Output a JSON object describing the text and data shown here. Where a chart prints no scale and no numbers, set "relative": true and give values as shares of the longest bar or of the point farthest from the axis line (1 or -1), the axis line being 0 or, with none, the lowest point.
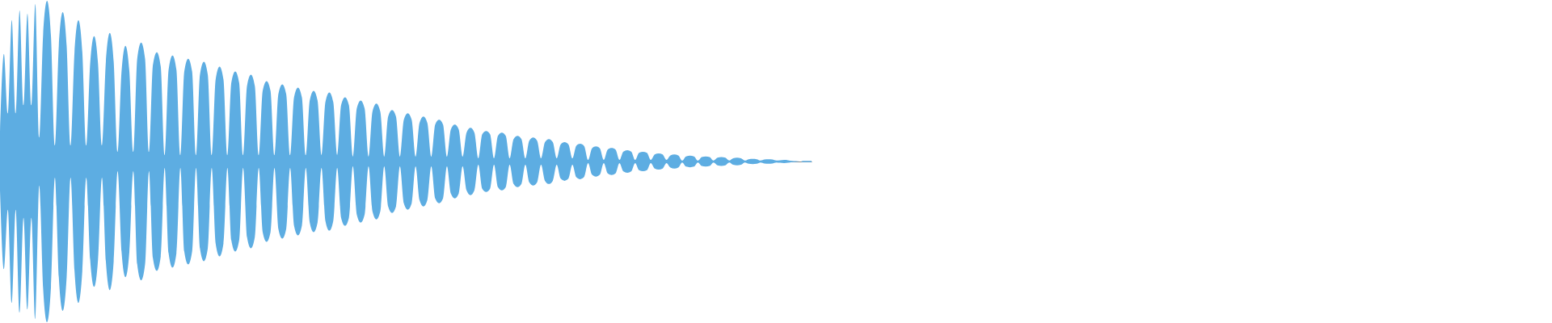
{
  "chart_data": {
    "type": "area",
    "relative": true,
    "categories": [
      null,
      null,
      null,
      null,
      null,
      null,
      null,
      null,
      null,
      null,
      null,
      null,
      null,
      null,
      null,
      null,
      null,
      null,
      null,
      null,
      null,
      null,
      null,
      null,
      null,
      null,
      null,
      null,
      null,
      null,
      null,
      null,
      null,
      null,
      null,
      null,
      null,
      null,
      null,
      null,
      null,
      null,
      null,
      null,
      null,
      null,
      null,
      null,
      null,
      null,
      null,
      null,
      null,
      null,
      null,
      null,
      null,
      null,
      null,
      null,
      null,
      null,
      null,
      null,
      null,
      null,
      null,
      null,
      null,
      null,
      null,
      null,
      null,
      null,
      null,
      null,
      null,
      null,
      null,
      null,
      null,
      null,
      null,
      null,
      null,
      null,
      null,
      null,
      null,
      null,
      null,
      null,
      null,
      null,
      null,
      null,
      null,
      null,
      null,
      null,
      null,
      null,
      null,
      null,
      null,
      null,
      null,
      null,
      null,
      null,
      null,
      null,
      null,
      null,
      null,
      null,
      null,
      null,
      null,
      null,
      null,
      null,
      null,
      null,
      null,
      null,
      null,
      null,
      null,
      null,
      null,
      null,
      null,
      null,
      null,
      null,
      null,
      null,
      null,
      null,
      null,
      null,
      null,
      null,
      null,
      null,
      null,
      null,
      null,
      null,
      null,
      null,
      null,
      null,
      null,
      null,
      null,
      null,
      null,
      null,
      null,
      null,
      null,
      null,
      null,
      null,
      null,
      null,
      null,
      null,
      null,
      null,
      null,
      null,
      null,
      null,
      null,
      null,
      null,
      null,
      null,
      null,
      null,
      null,
      null,
      null,
      null,
      null,
      null,
      null,
      null,
      null,
      null,
      null,
      null,
      null,
      null,
      null,
      null,
      null,
      null,
      null,
      null,
      null,
      null,
      null,
      null,
      null
    ],
    "series": [
      {
        "color": "#5dade2",
        "values": [
          0.18,
          0.67,
          0.3,
          0.88,
          0.3,
          0.94,
          0.35,
          0.92,
          0.35,
          0.98,
          0.15,
          0.79,
          1.0,
          0.78,
          0.1,
          0.72,
          0.93,
          0.72,
          0.1,
          0.68,
          0.88,
          0.68,
          0.1,
          0.61,
          0.78,
          0.61,
          0.1,
          0.62,
          0.8,
          0.62,
          0.06,
          0.56,
          0.72,
          0.56,
          0.06,
          0.64,
          0.74,
          0.64,
          0.06,
          0.6,
          0.68,
          0.59,
          0.04,
          0.57,
          0.66,
          0.57,
          0.04,
          0.56,
          0.64,
          0.56,
          0.04,
          0.54,
          0.62,
          0.54,
          0.04,
          0.51,
          0.59,
          0.51,
          0.04,
          0.49,
          0.56,
          0.49,
          0.04,
          0.47,
          0.54,
          0.47,
          0.04,
          0.44,
          0.5,
          0.44,
          0.04,
          0.42,
          0.48,
          0.42,
          0.04,
          0.4,
          0.46,
          0.4,
          0.04,
          0.38,
          0.44,
          0.38,
          0.04,
          0.37,
          0.43,
          0.37,
          0.04,
          0.35,
          0.4,
          0.35,
          0.03,
          0.33,
          0.38,
          0.33,
          0.03,
          0.31,
          0.36,
          0.31,
          0.03,
          0.28,
          0.32,
          0.28,
          0.03,
          0.26,
          0.3,
          0.26,
          0.03,
          0.24,
          0.28,
          0.24,
          0.03,
          0.23,
          0.26,
          0.23,
          0.03,
          0.2,
          0.23,
          0.2,
          0.03,
          0.18,
          0.21,
          0.18,
          0.02,
          0.17,
          0.19,
          0.17,
          0.02,
          0.16,
          0.18,
          0.16,
          0.02,
          0.14,
          0.16,
          0.14,
          0.02,
          0.13,
          0.15,
          0.13,
          0.02,
          0.12,
          0.14,
          0.12,
          0.02,
          0.106,
          0.12,
          0.106,
          0.02,
          0.098,
          0.11,
          0.096,
          0.01,
          0.082,
          0.094,
          0.082,
          0.01,
          0.074,
          0.084,
          0.074,
          0.01,
          0.062,
          0.07,
          0.062,
          0.01,
          0.054,
          0.06,
          0.054,
          0.01,
          0.044,
          0.05,
          0.044,
          0.01,
          0.038,
          0.044,
          0.038,
          0.006,
          0.032,
          0.036,
          0.032,
          0.006,
          0.028,
          0.032,
          0.028,
          0.006,
          0.024,
          0.028,
          0.024,
          0.006,
          0.02,
          0.024,
          0.02,
          0.006,
          0.014,
          0.016,
          0.014,
          0.006,
          0.012,
          0.014,
          0.012,
          0.006,
          0.008,
          0.01,
          0.008,
          0.004,
          0.002,
          0,
          0.004,
          0.004,
          0.004
        ]
      },
      {
        "color": "#5dade2",
        "values": [
          -0.18,
          -0.67,
          -0.3,
          -0.88,
          -0.3,
          -0.94,
          -0.35,
          -0.92,
          -0.35,
          -0.98,
          -0.15,
          -0.79,
          -1.0,
          -0.78,
          -0.1,
          -0.72,
          -0.93,
          -0.72,
          -0.1,
          -0.68,
          -0.88,
          -0.68,
          -0.1,
          -0.61,
          -0.78,
          -0.61,
          -0.1,
          -0.62,
          -0.8,
          -0.62,
          -0.06,
          -0.56,
          -0.72,
          -0.56,
          -0.06,
          -0.64,
          -0.74,
          -0.64,
          -0.06,
          -0.6,
          -0.68,
          -0.59,
          -0.04,
          -0.57,
          -0.66,
          -0.57,
          -0.04,
          -0.56,
          -0.64,
          -0.56,
          -0.04,
          -0.54,
          -0.62,
          -0.54,
          -0.04,
          -0.51,
          -0.59,
          -0.51,
          -0.04,
          -0.49,
          -0.56,
          -0.49,
          -0.04,
          -0.47,
          -0.54,
          -0.47,
          -0.04,
          -0.44,
          -0.5,
          -0.44,
          -0.04,
          -0.42,
          -0.48,
          -0.42,
          -0.04,
          -0.4,
          -0.46,
          -0.4,
          -0.04,
          -0.38,
          -0.44,
          -0.38,
          -0.04,
          -0.37,
          -0.43,
          -0.37,
          -0.04,
          -0.35,
          -0.4,
          -0.35,
          -0.03,
          -0.33,
          -0.38,
          -0.33,
          -0.03,
          -0.31,
          -0.36,
          -0.31,
          -0.03,
          -0.28,
          -0.32,
          -0.28,
          -0.03,
          -0.26,
          -0.3,
          -0.26,
          -0.03,
          -0.24,
          -0.28,
          -0.24,
          -0.03,
          -0.23,
          -0.26,
          -0.23,
          -0.03,
          -0.2,
          -0.23,
          -0.2,
          -0.03,
          -0.18,
          -0.21,
          -0.18,
          -0.02,
          -0.17,
          -0.19,
          -0.17,
          -0.02,
          -0.16,
          -0.18,
          -0.16,
          -0.02,
          -0.14,
          -0.16,
          -0.14,
          -0.02,
          -0.13,
          -0.15,
          -0.13,
          -0.02,
          -0.12,
          -0.14,
          -0.12,
          -0.02,
          -0.106,
          -0.12,
          -0.106,
          -0.02,
          -0.098,
          -0.11,
          -0.096,
          -0.01,
          -0.082,
          -0.094,
          -0.082,
          -0.01,
          -0.074,
          -0.084,
          -0.074,
          -0.01,
          -0.062,
          -0.07,
          -0.062,
          -0.01,
          -0.054,
          -0.06,
          -0.054,
          -0.01,
          -0.044,
          -0.05,
          -0.044,
          -0.01,
          -0.038,
          -0.044,
          -0.038,
          -0.006,
          -0.032,
          -0.036,
          -0.032,
          -0.006,
          -0.028,
          -0.032,
          -0.028,
          -0.006,
          -0.024,
          -0.028,
          -0.024,
          -0.006,
          -0.02,
          -0.024,
          -0.02,
          -0.006,
          -0.014,
          -0.016,
          -0.014,
          -0.006,
          -0.012,
          -0.014,
          -0.012,
          -0.006,
          -0.008,
          -0.01,
          -0.008,
          -0.004,
          -0.002,
          0,
          -0.004,
          -0.004,
          -0.004
        ]
      }
    ]
  }
}
